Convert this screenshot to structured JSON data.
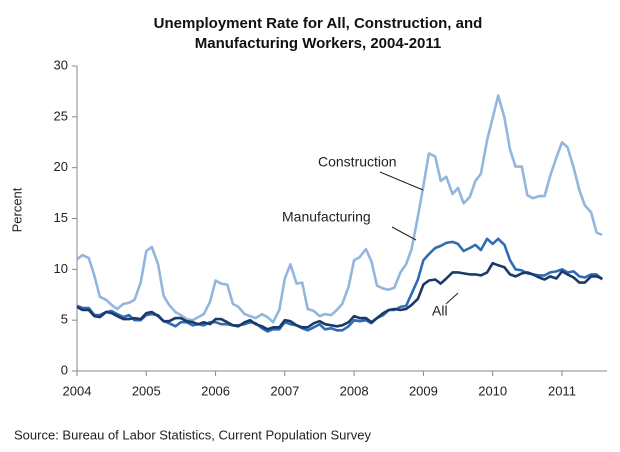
{
  "chart_data": {
    "type": "line",
    "title": [
      "Unemployment Rate for All, Construction, and",
      "Manufacturing Workers, 2004-2011"
    ],
    "y_label": "Percent",
    "source": "Source: Bureau of Labor Statistics, Current Population Survey",
    "annotations": [
      "Construction",
      "Manufacturing",
      "All"
    ],
    "x": [
      2004,
      2004.08,
      2004.17,
      2004.25,
      2004.33,
      2004.42,
      2004.5,
      2004.58,
      2004.67,
      2004.75,
      2004.83,
      2004.92,
      2005,
      2005.08,
      2005.17,
      2005.25,
      2005.33,
      2005.42,
      2005.5,
      2005.58,
      2005.67,
      2005.75,
      2005.83,
      2005.92,
      2006,
      2006.08,
      2006.17,
      2006.25,
      2006.33,
      2006.42,
      2006.5,
      2006.58,
      2006.67,
      2006.75,
      2006.83,
      2006.92,
      2007,
      2007.08,
      2007.17,
      2007.25,
      2007.33,
      2007.42,
      2007.5,
      2007.58,
      2007.67,
      2007.75,
      2007.83,
      2007.92,
      2008,
      2008.08,
      2008.17,
      2008.25,
      2008.33,
      2008.42,
      2008.5,
      2008.58,
      2008.67,
      2008.75,
      2008.83,
      2008.92,
      2009,
      2009.08,
      2009.17,
      2009.25,
      2009.33,
      2009.42,
      2009.5,
      2009.58,
      2009.67,
      2009.75,
      2009.83,
      2009.92,
      2010,
      2010.08,
      2010.17,
      2010.25,
      2010.33,
      2010.42,
      2010.5,
      2010.58,
      2010.67,
      2010.75,
      2010.83,
      2010.92,
      2011,
      2011.08,
      2011.17,
      2011.25,
      2011.33,
      2011.42,
      2011.5,
      2011.58
    ],
    "series": [
      {
        "name": "Construction",
        "color": "#93b6de",
        "values": [
          11.0,
          11.4,
          11.1,
          9.4,
          7.3,
          7.0,
          6.5,
          6.1,
          6.6,
          6.7,
          7.0,
          8.7,
          11.8,
          12.2,
          10.5,
          7.4,
          6.5,
          5.8,
          5.5,
          5.1,
          5.0,
          5.3,
          5.6,
          6.8,
          8.9,
          8.6,
          8.5,
          6.6,
          6.3,
          5.6,
          5.4,
          5.2,
          5.6,
          5.3,
          4.8,
          6.0,
          9.1,
          10.5,
          8.6,
          8.7,
          6.1,
          5.9,
          5.4,
          5.6,
          5.5,
          6.0,
          6.6,
          8.3,
          10.9,
          11.2,
          12.0,
          10.8,
          8.4,
          8.1,
          8.0,
          8.2,
          9.7,
          10.5,
          12.0,
          15.2,
          18.2,
          21.4,
          21.1,
          18.7,
          19.1,
          17.4,
          18.0,
          16.5,
          17.1,
          18.7,
          19.4,
          22.7,
          24.9,
          27.1,
          24.9,
          21.8,
          20.1,
          20.1,
          17.3,
          17.0,
          17.2,
          17.2,
          19.2,
          21.0,
          22.5,
          22.0,
          20.0,
          17.8,
          16.3,
          15.6,
          13.6,
          13.4
        ]
      },
      {
        "name": "Manufacturing",
        "color": "#2f6cb3",
        "values": [
          6.4,
          6.2,
          6.2,
          5.5,
          5.5,
          5.8,
          5.9,
          5.6,
          5.3,
          5.5,
          5.0,
          5.0,
          5.5,
          5.6,
          5.5,
          4.9,
          4.7,
          4.4,
          4.8,
          4.8,
          4.5,
          4.6,
          4.5,
          4.8,
          4.8,
          4.6,
          4.6,
          4.5,
          4.5,
          4.6,
          4.8,
          4.7,
          4.2,
          3.9,
          4.1,
          4.1,
          4.8,
          4.6,
          4.5,
          4.2,
          4.0,
          4.3,
          4.6,
          4.1,
          4.2,
          4.0,
          4.0,
          4.4,
          5.0,
          4.9,
          5.0,
          4.7,
          5.2,
          5.5,
          6.0,
          6.0,
          6.3,
          6.4,
          7.6,
          9.0,
          10.9,
          11.5,
          12.1,
          12.3,
          12.6,
          12.7,
          12.5,
          11.8,
          12.1,
          12.4,
          11.9,
          13.0,
          12.5,
          13.0,
          12.4,
          10.9,
          10.0,
          9.9,
          9.6,
          9.5,
          9.4,
          9.4,
          9.7,
          9.8,
          10.0,
          9.7,
          9.8,
          9.3,
          9.2,
          9.5,
          9.5,
          9.0
        ]
      },
      {
        "name": "All",
        "color": "#1b3a6a",
        "values": [
          6.3,
          6.0,
          6.0,
          5.4,
          5.3,
          5.8,
          5.7,
          5.4,
          5.1,
          5.1,
          5.2,
          5.1,
          5.7,
          5.8,
          5.4,
          4.9,
          4.9,
          5.2,
          5.2,
          4.9,
          4.8,
          4.6,
          4.8,
          4.6,
          5.1,
          5.1,
          4.8,
          4.5,
          4.4,
          4.8,
          5.0,
          4.6,
          4.4,
          4.1,
          4.3,
          4.3,
          5.0,
          4.9,
          4.5,
          4.3,
          4.3,
          4.7,
          4.9,
          4.6,
          4.5,
          4.4,
          4.5,
          4.8,
          5.4,
          5.2,
          5.2,
          4.8,
          5.2,
          5.7,
          6.0,
          6.1,
          6.0,
          6.1,
          6.5,
          7.1,
          8.5,
          8.9,
          9.0,
          8.6,
          9.1,
          9.7,
          9.7,
          9.6,
          9.5,
          9.5,
          9.4,
          9.7,
          10.6,
          10.4,
          10.2,
          9.5,
          9.3,
          9.6,
          9.7,
          9.5,
          9.2,
          9.0,
          9.3,
          9.1,
          9.8,
          9.5,
          9.2,
          8.7,
          8.7,
          9.3,
          9.3,
          9.1
        ]
      }
    ],
    "xlim": [
      2004,
      2011.65
    ],
    "xticks": [
      2004,
      2005,
      2006,
      2007,
      2008,
      2009,
      2010,
      2011
    ],
    "ylim": [
      0,
      30
    ],
    "yticks": [
      0,
      5,
      10,
      15,
      20,
      25,
      30
    ],
    "grid": false
  }
}
